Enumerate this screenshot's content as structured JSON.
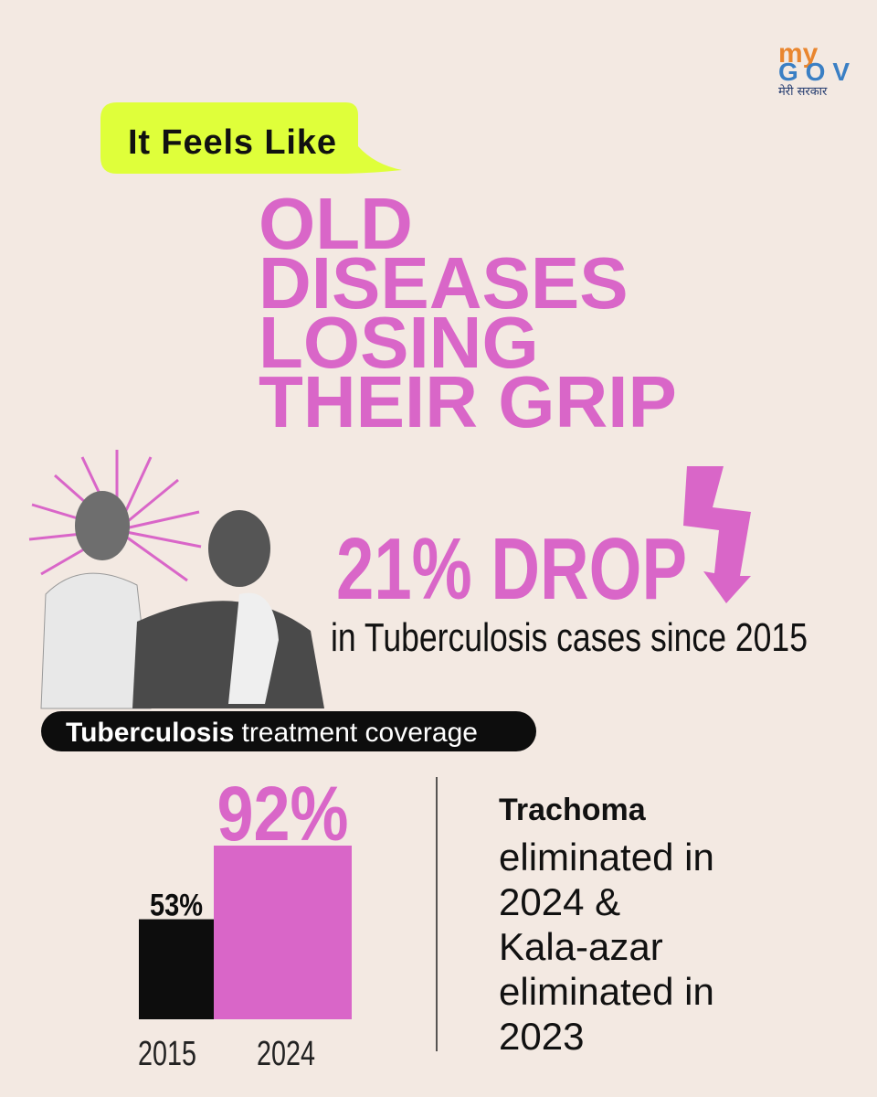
{
  "logo": {
    "my": "my",
    "gov": "GOV",
    "tagline": "मेरी सरकार"
  },
  "bubble": "It Feels Like",
  "headline": [
    "OLD",
    "DISEASES",
    "LOSING",
    "THEIR GRIP"
  ],
  "stat": {
    "big": "21% DROP",
    "caption": "in Tuberculosis cases since 2015"
  },
  "chart_data": {
    "type": "bar",
    "title": {
      "bold": "Tuberculosis",
      "rest": "treatment coverage"
    },
    "categories": [
      "2015",
      "2024"
    ],
    "series": [
      {
        "name": null,
        "values": [
          53,
          92
        ],
        "value_labels": [
          "53%",
          "92%"
        ],
        "colors": [
          "#0d0d0d",
          "#d966c8"
        ]
      }
    ]
  },
  "side_note": {
    "title": "Trachoma",
    "lines": [
      "eliminated in",
      "2024 &",
      "Kala-azar",
      "eliminated in",
      "2023"
    ]
  }
}
